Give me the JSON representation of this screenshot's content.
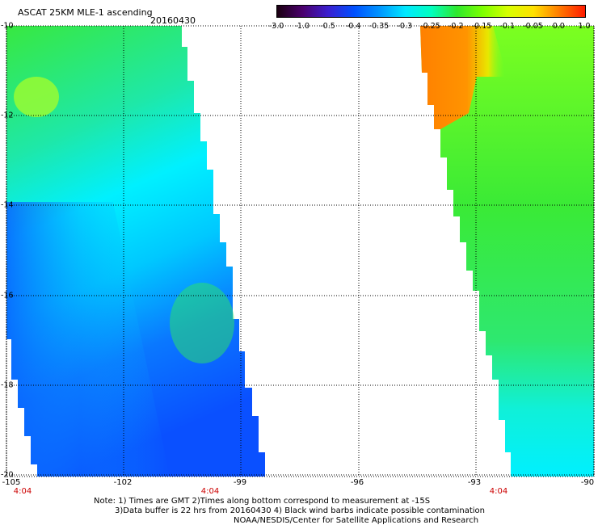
{
  "header": {
    "title": "ASCAT 25KM MLE-1 ascending",
    "date": "20160430"
  },
  "colorbar": {
    "ticks": [
      "-3.0",
      "-1.0",
      "-0.5",
      "-0.4",
      "-0.35",
      "-0.3",
      "-0.25",
      "-0.2",
      "-0.15",
      "-0.1",
      "-0.05",
      "0.0",
      "1.0"
    ],
    "colors": [
      "#1a0010",
      "#4b006e",
      "#3a1fd0",
      "#0050ff",
      "#0096ff",
      "#00e8ff",
      "#00ffc0",
      "#2ee82e",
      "#7cff00",
      "#d8ff00",
      "#ffe000",
      "#ff7a00",
      "#ff1a00"
    ]
  },
  "axes": {
    "lat_labels": [
      "-10",
      "-12",
      "-14",
      "-16",
      "-18",
      "-20"
    ],
    "lon_labels": [
      "-105",
      "-102",
      "-99",
      "-96",
      "-93",
      "-90"
    ],
    "pass_times": [
      "4:04",
      "4:04",
      "4:04"
    ]
  },
  "notes": [
    "Note: 1) Times are GMT 2)Times along bottom correspond to measurement at -15S",
    "3)Data buffer is 22 hrs from 20160430 4) Black wind barbs indicate possible contamination",
    "NOAA/NESDIS/Center for Satellite Applications and Research"
  ],
  "colors": {
    "deep_blue": "#0a3cff",
    "blue": "#0a78ff",
    "cyan": "#00f0ff",
    "green": "#2ee82e",
    "light_green": "#8cff28",
    "orange": "#ff8c00",
    "pass_time": "#cc0000"
  }
}
